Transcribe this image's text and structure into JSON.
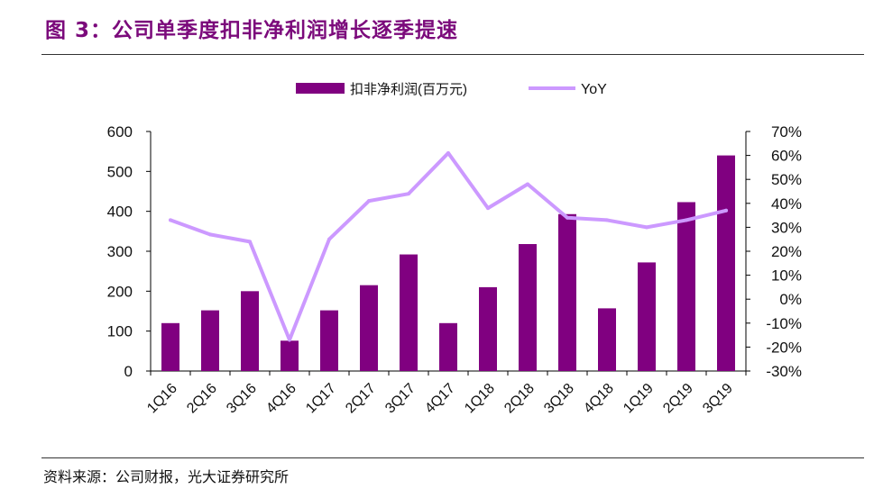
{
  "figure": {
    "title": "图 3：公司单季度扣非净利润增长逐季提速",
    "source": "资料来源：公司财报，光大证券研究所"
  },
  "colors": {
    "bar": "#800080",
    "line": "#cc99ff",
    "title": "#7b0a7b",
    "axis": "#000000"
  },
  "chart_data": {
    "type": "bar",
    "categories": [
      "1Q16",
      "2Q16",
      "3Q16",
      "4Q16",
      "1Q17",
      "2Q17",
      "3Q17",
      "4Q17",
      "1Q18",
      "2Q18",
      "3Q18",
      "4Q18",
      "1Q19",
      "2Q19",
      "3Q19"
    ],
    "series": [
      {
        "name": "扣非净利润(百万元)",
        "type": "bar",
        "axis": "left",
        "values": [
          120,
          152,
          200,
          76,
          152,
          215,
          292,
          120,
          210,
          318,
          393,
          157,
          272,
          423,
          540
        ]
      },
      {
        "name": "YoY",
        "type": "line",
        "axis": "right",
        "values": [
          33,
          27,
          24,
          -17,
          25,
          41,
          44,
          61,
          38,
          48,
          34,
          33,
          30,
          33,
          37
        ]
      }
    ],
    "left_axis": {
      "ylim": [
        0,
        600
      ],
      "ticks": [
        "0",
        "100",
        "200",
        "300",
        "400",
        "500",
        "600"
      ]
    },
    "right_axis": {
      "ylim": [
        -30,
        70
      ],
      "ticks": [
        "-30%",
        "-20%",
        "-10%",
        "0%",
        "10%",
        "20%",
        "30%",
        "40%",
        "50%",
        "60%",
        "70%"
      ]
    },
    "legend": {
      "position": "top-center",
      "entries": [
        "扣非净利润(百万元)",
        "YoY"
      ]
    },
    "grid": false
  }
}
